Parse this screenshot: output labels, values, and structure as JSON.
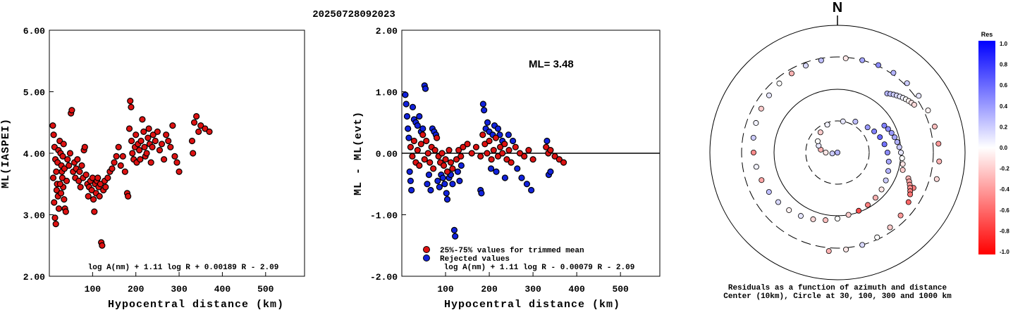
{
  "title": "20250728092023",
  "chart_data": [
    {
      "type": "scatter",
      "ylabel": "ML(IASPEI)",
      "xlabel": "Hypocentral distance (km)",
      "xlim": [
        0,
        590
      ],
      "ylim": [
        2.0,
        6.0
      ],
      "xticks": [
        "100",
        "200",
        "300",
        "400",
        "500"
      ],
      "yticks": [
        "2.00",
        "3.00",
        "4.00",
        "5.00",
        "6.00"
      ],
      "formula": "log A(nm) + 1.11 log R + 0.00189 R - 2.09",
      "point_color": "#dd1111",
      "points": [
        [
          8,
          4.45
        ],
        [
          10,
          4.3
        ],
        [
          12,
          4.1
        ],
        [
          14,
          3.9
        ],
        [
          16,
          3.7
        ],
        [
          18,
          3.5
        ],
        [
          20,
          3.3
        ],
        [
          22,
          3.1
        ],
        [
          9,
          3.6
        ],
        [
          11,
          3.2
        ],
        [
          13,
          2.95
        ],
        [
          15,
          2.85
        ],
        [
          17,
          3.4
        ],
        [
          19,
          3.85
        ],
        [
          21,
          4.05
        ],
        [
          24,
          4.2
        ],
        [
          26,
          4.0
        ],
        [
          28,
          3.8
        ],
        [
          30,
          3.6
        ],
        [
          32,
          3.45
        ],
        [
          34,
          3.25
        ],
        [
          36,
          3.1
        ],
        [
          38,
          3.05
        ],
        [
          25,
          3.5
        ],
        [
          27,
          3.35
        ],
        [
          29,
          3.7
        ],
        [
          31,
          3.95
        ],
        [
          33,
          4.15
        ],
        [
          35,
          3.75
        ],
        [
          40,
          3.55
        ],
        [
          42,
          3.9
        ],
        [
          45,
          3.8
        ],
        [
          48,
          4.0
        ],
        [
          50,
          4.65
        ],
        [
          52,
          4.7
        ],
        [
          55,
          3.7
        ],
        [
          58,
          3.85
        ],
        [
          60,
          3.6
        ],
        [
          62,
          3.75
        ],
        [
          65,
          3.9
        ],
        [
          68,
          3.55
        ],
        [
          70,
          3.7
        ],
        [
          72,
          3.45
        ],
        [
          75,
          3.8
        ],
        [
          78,
          3.6
        ],
        [
          80,
          4.05
        ],
        [
          82,
          4.1
        ],
        [
          85,
          3.65
        ],
        [
          88,
          3.5
        ],
        [
          90,
          3.3
        ],
        [
          92,
          3.45
        ],
        [
          95,
          3.55
        ],
        [
          98,
          3.4
        ],
        [
          100,
          3.6
        ],
        [
          102,
          3.25
        ],
        [
          104,
          3.05
        ],
        [
          106,
          3.5
        ],
        [
          108,
          3.35
        ],
        [
          110,
          3.55
        ],
        [
          112,
          3.6
        ],
        [
          114,
          3.45
        ],
        [
          116,
          3.3
        ],
        [
          118,
          3.5
        ],
        [
          120,
          2.55
        ],
        [
          122,
          2.5
        ],
        [
          125,
          3.4
        ],
        [
          128,
          3.55
        ],
        [
          130,
          3.45
        ],
        [
          135,
          3.6
        ],
        [
          140,
          3.7
        ],
        [
          145,
          3.75
        ],
        [
          150,
          3.85
        ],
        [
          155,
          3.95
        ],
        [
          160,
          4.1
        ],
        [
          165,
          3.8
        ],
        [
          170,
          3.95
        ],
        [
          175,
          3.7
        ],
        [
          180,
          3.35
        ],
        [
          182,
          3.3
        ],
        [
          185,
          4.4
        ],
        [
          187,
          4.85
        ],
        [
          189,
          4.75
        ],
        [
          190,
          4.2
        ],
        [
          192,
          4.0
        ],
        [
          195,
          3.9
        ],
        [
          198,
          4.1
        ],
        [
          200,
          4.3
        ],
        [
          202,
          3.85
        ],
        [
          205,
          4.15
        ],
        [
          208,
          4.05
        ],
        [
          210,
          3.9
        ],
        [
          212,
          4.2
        ],
        [
          215,
          4.55
        ],
        [
          218,
          4.35
        ],
        [
          220,
          4.1
        ],
        [
          222,
          3.95
        ],
        [
          225,
          4.0
        ],
        [
          228,
          4.25
        ],
        [
          230,
          4.4
        ],
        [
          232,
          4.15
        ],
        [
          235,
          3.85
        ],
        [
          238,
          4.1
        ],
        [
          240,
          4.3
        ],
        [
          245,
          4.2
        ],
        [
          250,
          4.35
        ],
        [
          255,
          4.05
        ],
        [
          260,
          4.15
        ],
        [
          265,
          3.9
        ],
        [
          270,
          4.3
        ],
        [
          275,
          4.2
        ],
        [
          280,
          4.1
        ],
        [
          285,
          4.45
        ],
        [
          290,
          3.95
        ],
        [
          295,
          3.85
        ],
        [
          300,
          3.7
        ],
        [
          330,
          4.2
        ],
        [
          332,
          4.0
        ],
        [
          335,
          4.5
        ],
        [
          340,
          4.6
        ],
        [
          345,
          4.35
        ],
        [
          350,
          4.45
        ],
        [
          360,
          4.4
        ],
        [
          370,
          4.35
        ]
      ]
    },
    {
      "type": "scatter",
      "ylabel": "ML - ML(evt)",
      "xlabel": "Hypocentral distance (km)",
      "xlim": [
        0,
        590
      ],
      "ylim": [
        -2.0,
        2.0
      ],
      "xticks": [
        "100",
        "200",
        "300",
        "400",
        "500"
      ],
      "yticks": [
        "-2.00",
        "-1.00",
        "0.00",
        "1.00",
        "2.00"
      ],
      "ml_label": "ML= 3.48",
      "legend": [
        "25%-75% values for trimmed mean",
        "Rejected values"
      ],
      "formula": "log A(nm) + 1.11 log R - 0.00079 R - 2.09",
      "series_colors": [
        "#dd1111",
        "#1122dd"
      ],
      "kept": [
        [
          20,
          0.1
        ],
        [
          24,
          -0.05
        ],
        [
          28,
          0.2
        ],
        [
          32,
          -0.15
        ],
        [
          36,
          0.05
        ],
        [
          40,
          -0.2
        ],
        [
          44,
          0.15
        ],
        [
          48,
          0.3
        ],
        [
          52,
          -0.1
        ],
        [
          56,
          0.2
        ],
        [
          60,
          0.0
        ],
        [
          64,
          -0.15
        ],
        [
          68,
          0.1
        ],
        [
          72,
          -0.25
        ],
        [
          76,
          0.05
        ],
        [
          80,
          0.25
        ],
        [
          84,
          -0.05
        ],
        [
          88,
          -0.15
        ],
        [
          92,
          0.0
        ],
        [
          96,
          -0.2
        ],
        [
          100,
          -0.1
        ],
        [
          104,
          -0.3
        ],
        [
          108,
          0.05
        ],
        [
          112,
          -0.15
        ],
        [
          116,
          -0.25
        ],
        [
          125,
          -0.1
        ],
        [
          130,
          0.05
        ],
        [
          135,
          -0.05
        ],
        [
          140,
          0.1
        ],
        [
          150,
          0.15
        ],
        [
          160,
          0.0
        ],
        [
          170,
          0.1
        ],
        [
          180,
          -0.05
        ],
        [
          185,
          0.3
        ],
        [
          190,
          0.15
        ],
        [
          195,
          0.0
        ],
        [
          200,
          0.2
        ],
        [
          205,
          -0.1
        ],
        [
          210,
          0.05
        ],
        [
          215,
          0.25
        ],
        [
          220,
          -0.05
        ],
        [
          225,
          0.1
        ],
        [
          230,
          0.0
        ],
        [
          235,
          0.15
        ],
        [
          240,
          -0.1
        ],
        [
          245,
          0.05
        ],
        [
          250,
          -0.15
        ],
        [
          260,
          0.1
        ],
        [
          270,
          0.0
        ],
        [
          280,
          -0.05
        ],
        [
          290,
          0.05
        ],
        [
          300,
          -0.1
        ],
        [
          330,
          0.1
        ],
        [
          335,
          0.0
        ],
        [
          340,
          0.05
        ],
        [
          350,
          -0.05
        ],
        [
          360,
          -0.1
        ],
        [
          370,
          -0.15
        ]
      ],
      "rejected": [
        [
          8,
          0.95
        ],
        [
          10,
          0.8
        ],
        [
          12,
          0.6
        ],
        [
          14,
          0.4
        ],
        [
          16,
          0.25
        ],
        [
          18,
          -0.3
        ],
        [
          20,
          -0.45
        ],
        [
          22,
          -0.6
        ],
        [
          25,
          0.75
        ],
        [
          28,
          0.55
        ],
        [
          32,
          0.5
        ],
        [
          36,
          0.45
        ],
        [
          40,
          0.6
        ],
        [
          44,
          0.35
        ],
        [
          48,
          0.4
        ],
        [
          52,
          1.1
        ],
        [
          54,
          1.05
        ],
        [
          58,
          -0.5
        ],
        [
          62,
          -0.35
        ],
        [
          66,
          -0.6
        ],
        [
          70,
          0.4
        ],
        [
          74,
          0.35
        ],
        [
          78,
          0.3
        ],
        [
          82,
          -0.45
        ],
        [
          86,
          -0.55
        ],
        [
          90,
          -0.35
        ],
        [
          94,
          -0.4
        ],
        [
          98,
          -0.5
        ],
        [
          102,
          -0.65
        ],
        [
          104,
          -0.75
        ],
        [
          108,
          -0.4
        ],
        [
          112,
          -0.35
        ],
        [
          116,
          -0.5
        ],
        [
          120,
          -1.25
        ],
        [
          122,
          -1.35
        ],
        [
          128,
          -0.3
        ],
        [
          132,
          -0.45
        ],
        [
          136,
          -0.2
        ],
        [
          180,
          -0.6
        ],
        [
          182,
          -0.65
        ],
        [
          186,
          0.8
        ],
        [
          188,
          0.7
        ],
        [
          192,
          0.4
        ],
        [
          196,
          0.5
        ],
        [
          200,
          0.35
        ],
        [
          204,
          -0.25
        ],
        [
          208,
          0.3
        ],
        [
          212,
          0.45
        ],
        [
          216,
          -0.3
        ],
        [
          220,
          0.4
        ],
        [
          224,
          0.3
        ],
        [
          230,
          0.2
        ],
        [
          236,
          -0.4
        ],
        [
          244,
          0.3
        ],
        [
          254,
          0.2
        ],
        [
          264,
          -0.25
        ],
        [
          274,
          -0.4
        ],
        [
          286,
          -0.5
        ],
        [
          296,
          -0.6
        ],
        [
          332,
          0.2
        ],
        [
          336,
          -0.35
        ],
        [
          340,
          -0.3
        ]
      ]
    },
    {
      "type": "polar-scatter",
      "north_label": "N",
      "caption1": "Residuals as a function of azimuth and distance",
      "caption2": "Center (10km), Circle at 30, 100, 300 and 1000 km",
      "rings_km": [
        30,
        100,
        300,
        1000
      ],
      "colorbar_title": "Res",
      "colorbar_range": [
        -1.0,
        1.0
      ],
      "colorbar_ticks": [
        "1.0",
        "0.8",
        "0.6",
        "0.4",
        "0.2",
        "0.0",
        "-0.2",
        "-0.4",
        "-0.6",
        "-0.8",
        "-1.0"
      ],
      "points": [
        [
          250,
          8,
          0.3
        ],
        [
          260,
          12,
          0.2
        ],
        [
          270,
          15,
          -0.1
        ],
        [
          280,
          18,
          -0.3
        ],
        [
          290,
          20,
          0.1
        ],
        [
          300,
          22,
          0.0
        ],
        [
          320,
          25,
          -0.2
        ],
        [
          340,
          28,
          0.05
        ],
        [
          10,
          30,
          0.1
        ],
        [
          30,
          35,
          0.25
        ],
        [
          50,
          40,
          0.4
        ],
        [
          60,
          45,
          0.5
        ],
        [
          70,
          50,
          0.6
        ],
        [
          80,
          55,
          0.55
        ],
        [
          90,
          60,
          0.45
        ],
        [
          100,
          65,
          0.35
        ],
        [
          110,
          70,
          0.3
        ],
        [
          120,
          75,
          0.2
        ],
        [
          130,
          80,
          -0.1
        ],
        [
          140,
          85,
          -0.3
        ],
        [
          150,
          90,
          -0.5
        ],
        [
          160,
          95,
          -0.7
        ],
        [
          170,
          100,
          -0.2
        ],
        [
          180,
          110,
          0.0
        ],
        [
          190,
          120,
          -0.25
        ],
        [
          200,
          130,
          -0.15
        ],
        [
          210,
          140,
          0.1
        ],
        [
          220,
          150,
          -0.05
        ],
        [
          230,
          160,
          0.15
        ],
        [
          240,
          170,
          0.25
        ],
        [
          250,
          180,
          -0.35
        ],
        [
          260,
          190,
          0.05
        ],
        [
          270,
          200,
          -0.45
        ],
        [
          280,
          210,
          0.2
        ],
        [
          290,
          220,
          0.05
        ],
        [
          300,
          230,
          -0.2
        ],
        [
          310,
          240,
          0.1
        ],
        [
          320,
          250,
          0.0
        ],
        [
          330,
          260,
          -0.3
        ],
        [
          340,
          270,
          0.15
        ],
        [
          350,
          280,
          0.25
        ],
        [
          5,
          290,
          -0.1
        ],
        [
          15,
          300,
          0.35
        ],
        [
          25,
          310,
          0.45
        ],
        [
          35,
          320,
          0.3
        ],
        [
          45,
          330,
          0.2
        ],
        [
          55,
          340,
          0.1
        ],
        [
          65,
          350,
          -0.05
        ],
        [
          75,
          360,
          -0.25
        ],
        [
          85,
          370,
          -0.4
        ],
        [
          95,
          380,
          -0.3
        ],
        [
          105,
          390,
          -0.15
        ],
        [
          115,
          200,
          -0.5
        ],
        [
          125,
          220,
          -0.6
        ],
        [
          135,
          240,
          -0.4
        ],
        [
          145,
          260,
          -0.2
        ],
        [
          155,
          280,
          0.0
        ],
        [
          165,
          300,
          0.15
        ],
        [
          175,
          320,
          -0.1
        ],
        [
          185,
          340,
          -0.3
        ],
        [
          60,
          70,
          0.5
        ],
        [
          65,
          75,
          0.45
        ],
        [
          70,
          80,
          0.4
        ],
        [
          75,
          85,
          0.35
        ],
        [
          80,
          90,
          0.3
        ],
        [
          85,
          95,
          0.2
        ],
        [
          90,
          100,
          0.1
        ],
        [
          95,
          105,
          0.0
        ],
        [
          100,
          110,
          -0.1
        ],
        [
          105,
          115,
          -0.2
        ],
        [
          40,
          160,
          0.3
        ],
        [
          42,
          170,
          0.25
        ],
        [
          44,
          180,
          0.2
        ],
        [
          46,
          190,
          0.15
        ],
        [
          48,
          200,
          0.1
        ],
        [
          50,
          210,
          0.05
        ],
        [
          52,
          220,
          0.0
        ],
        [
          54,
          230,
          -0.05
        ],
        [
          56,
          240,
          -0.1
        ],
        [
          58,
          250,
          -0.15
        ],
        [
          110,
          150,
          -0.3
        ],
        [
          112,
          160,
          -0.35
        ],
        [
          114,
          170,
          -0.4
        ],
        [
          116,
          180,
          -0.45
        ],
        [
          118,
          190,
          -0.5
        ],
        [
          120,
          200,
          -0.55
        ]
      ]
    }
  ]
}
